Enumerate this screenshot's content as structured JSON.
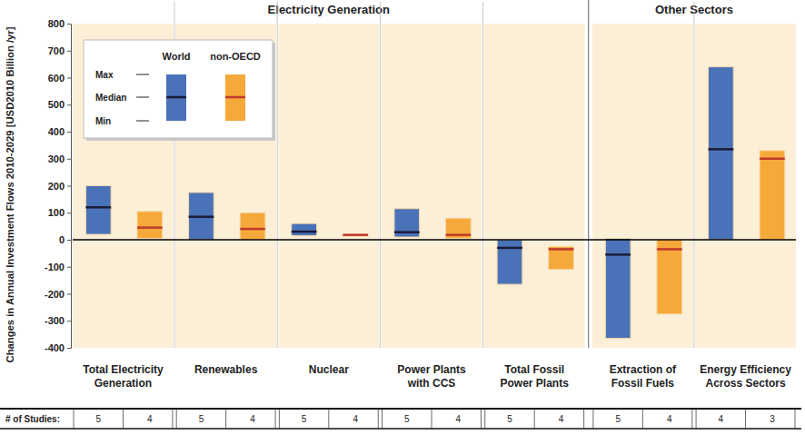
{
  "chart_data": {
    "type": "range",
    "ylabel": "Changes in Annual Investment Flows 2010-2029 [USD2010 Billion /yr]",
    "categories": [
      "Total Electricity\nGeneration",
      "Renewables",
      "Nuclear",
      "Power Plants\nwith CCS",
      "Total Fossil\nPower Plants",
      "Extraction of\nFossil Fuels",
      "Energy Efficiency\nAcross Sectors"
    ],
    "category_groups": [
      "Electricity Generation",
      "Electricity Generation",
      "Electricity Generation",
      "Electricity Generation",
      "Electricity Generation",
      "Other Sectors",
      "Other Sectors"
    ],
    "series": [
      {
        "name": "World",
        "color": "#4a72b8",
        "max": [
          200,
          175,
          60,
          115,
          0,
          5,
          640
        ],
        "median": [
          120,
          85,
          30,
          28,
          -30,
          -55,
          335
        ],
        "min": [
          20,
          0,
          15,
          10,
          -165,
          -365,
          0
        ],
        "studies": [
          5,
          5,
          5,
          5,
          5,
          5,
          4
        ]
      },
      {
        "name": "non-OECD",
        "color": "#f5a93a",
        "max": [
          105,
          100,
          20,
          80,
          -25,
          0,
          330
        ],
        "median": [
          45,
          40,
          18,
          18,
          -35,
          -35,
          300
        ],
        "min": [
          5,
          0,
          15,
          5,
          -110,
          -275,
          0
        ],
        "studies": [
          4,
          4,
          4,
          4,
          4,
          4,
          3
        ]
      }
    ],
    "legend_stats": [
      "Max",
      "Median",
      "Min"
    ],
    "studies_label": "# of Studies:",
    "ylim": [
      -400,
      800
    ],
    "yticks": [
      -400,
      -300,
      -200,
      -100,
      0,
      100,
      200,
      300,
      400,
      500,
      600,
      700,
      800
    ],
    "legend": "upper left"
  }
}
